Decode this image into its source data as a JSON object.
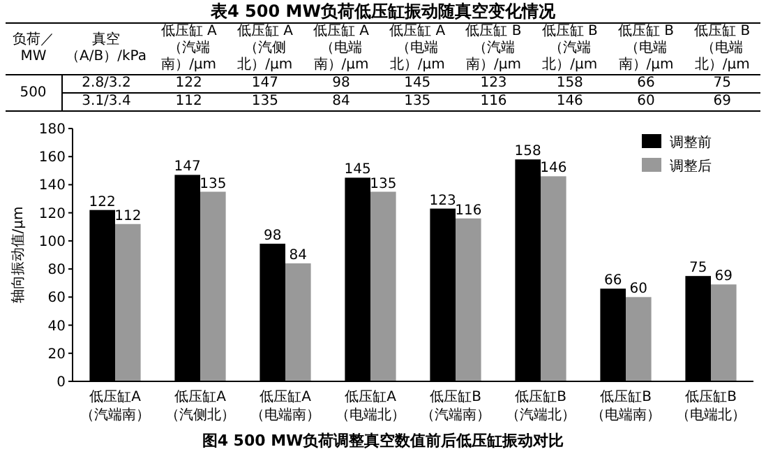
{
  "chart_data": {
    "type": "bar",
    "title": "图4 500 MW负荷调整真空数值前后低压缸振动对比",
    "ylabel": "轴向振动值/μm",
    "categories": [
      "低压缸A（汽端南）",
      "低压缸A（汽侧北）",
      "低压缸A（电端南）",
      "低压缸A（电端北）",
      "低压缸B（汽端南）",
      "低压缸B（汽端北）",
      "低压缸B（电端南）",
      "低压缸B（电端北）"
    ],
    "series": [
      {
        "name": "调整前",
        "color": "#000000",
        "values": [
          122,
          147,
          98,
          145,
          123,
          158,
          66,
          75
        ]
      },
      {
        "name": "调整后",
        "color": "#999999",
        "values": [
          112,
          135,
          84,
          135,
          116,
          146,
          60,
          69
        ]
      }
    ],
    "ylim": [
      0,
      180
    ],
    "yticks": [
      0,
      20,
      40,
      60,
      80,
      100,
      120,
      140,
      160,
      180
    ],
    "data_labels": true,
    "legend": "top right",
    "annotations": [
      "表4 500 MW负荷低压缸振动随真空变化情况",
      "负荷／MW",
      "真空（A/B）/kPa",
      "500",
      "2.8/3.2",
      "3.1/3.4",
      "低压缸 A（汽端南）/μm",
      "低压缸 A（汽侧北）/μm",
      "低压缸 A（电端南）/μm",
      "低压缸 A（电端北）/μm",
      "低压缸 B（汽端南）/μm",
      "低压缸 B（汽端北）/μm",
      "低压缸 B（电端南）/μm",
      "低压缸 B（电端北）/μm",
      "122",
      "147",
      "98",
      "145",
      "123",
      "158",
      "66",
      "75",
      "112",
      "135",
      "84",
      "135",
      "116",
      "146",
      "60",
      "69"
    ]
  }
}
